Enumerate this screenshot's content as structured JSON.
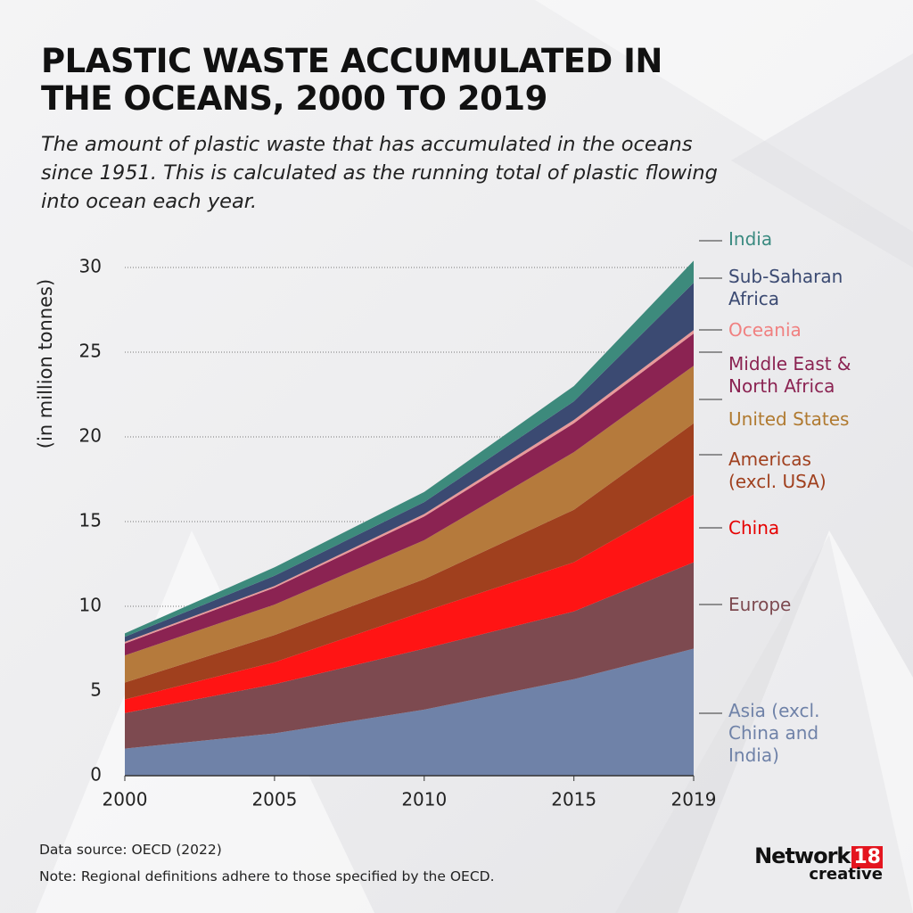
{
  "chart_data": {
    "type": "stacked_area",
    "title": "PLASTIC WASTE ACCUMULATED IN THE OCEANS, 2000 TO 2019",
    "subtitle": "The amount of plastic waste that has accumulated in the oceans since 1951. This is calculated as the running total of plastic flowing into ocean each year.",
    "y_label": "(in million tonnes)",
    "x": [
      2000,
      2005,
      2010,
      2015,
      2019
    ],
    "xlim": [
      2000,
      2019
    ],
    "xticks": [
      2000,
      2005,
      2010,
      2015,
      2019
    ],
    "ylim": [
      0,
      30
    ],
    "yticks": [
      0,
      5,
      10,
      15,
      20,
      25,
      30
    ],
    "grid": true,
    "series": [
      {
        "name": "Asia (excl. China and India)",
        "color": "#6f82a8",
        "values": [
          1.6,
          2.5,
          3.9,
          5.7,
          7.5
        ]
      },
      {
        "name": "Europe",
        "color": "#7d4a50",
        "values": [
          2.1,
          2.9,
          3.6,
          4.0,
          5.1
        ]
      },
      {
        "name": "China",
        "color": "#ff1414",
        "values": [
          0.8,
          1.3,
          2.2,
          2.9,
          4.0
        ]
      },
      {
        "name": "Americas (excl. USA)",
        "color": "#a0401e",
        "values": [
          1.0,
          1.6,
          1.9,
          3.1,
          4.2
        ]
      },
      {
        "name": "United States",
        "color": "#b57a3c",
        "values": [
          1.6,
          1.8,
          2.3,
          3.4,
          3.4
        ]
      },
      {
        "name": "Middle East & North Africa",
        "color": "#8b2352",
        "values": [
          0.7,
          1.0,
          1.4,
          1.7,
          1.9
        ]
      },
      {
        "name": "Oceania",
        "color": "#e89a9a",
        "values": [
          0.1,
          0.1,
          0.15,
          0.2,
          0.2
        ]
      },
      {
        "name": "Sub-Saharan Africa",
        "color": "#3b4a72",
        "values": [
          0.3,
          0.6,
          0.7,
          1.1,
          2.8
        ]
      },
      {
        "name": "India",
        "color": "#3d8a7c",
        "values": [
          0.2,
          0.5,
          0.6,
          0.9,
          1.3
        ]
      }
    ],
    "source": "Data source: OECD (2022)",
    "note": "Note: Regional definitions adhere to those specified by the OECD."
  },
  "logo": {
    "name": "Network",
    "number": "18",
    "sub": "creative"
  }
}
